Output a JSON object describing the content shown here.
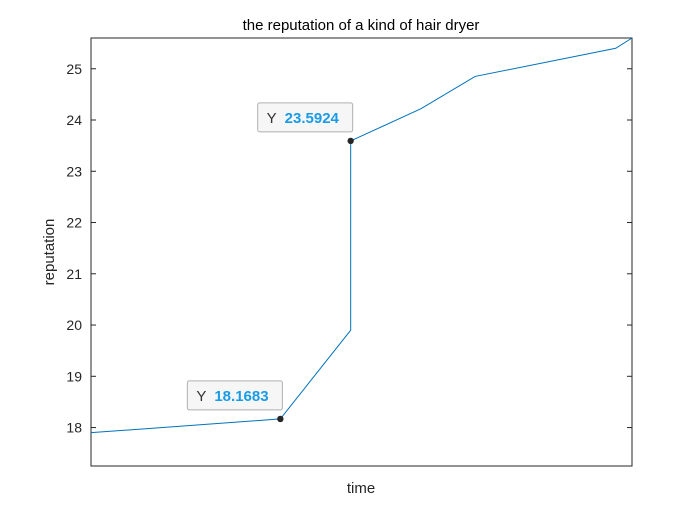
{
  "chart_data": {
    "type": "line",
    "title": "the reputation of a kind of hair dryer",
    "xlabel": "time",
    "ylabel": "reputation",
    "xlim": [
      0,
      1
    ],
    "ylim": [
      17.25,
      25.6
    ],
    "y_ticks": [
      18,
      19,
      20,
      21,
      22,
      23,
      24,
      25
    ],
    "x_tick_labels": false,
    "grid": false,
    "series_color": "#0072bd",
    "series": [
      {
        "x": [
          0,
          0.35,
          0.48,
          0.48,
          0.61,
          0.71,
          0.97,
          1.0
        ],
        "values": [
          17.9,
          18.1683,
          19.9,
          23.5924,
          24.22,
          24.85,
          25.4,
          25.6
        ]
      }
    ],
    "datatips": [
      {
        "key": "Y",
        "value": "18.1683",
        "x": 0.35,
        "y": 18.1683
      },
      {
        "key": "Y",
        "value": "23.5924",
        "x": 0.48,
        "y": 23.5924
      }
    ]
  }
}
